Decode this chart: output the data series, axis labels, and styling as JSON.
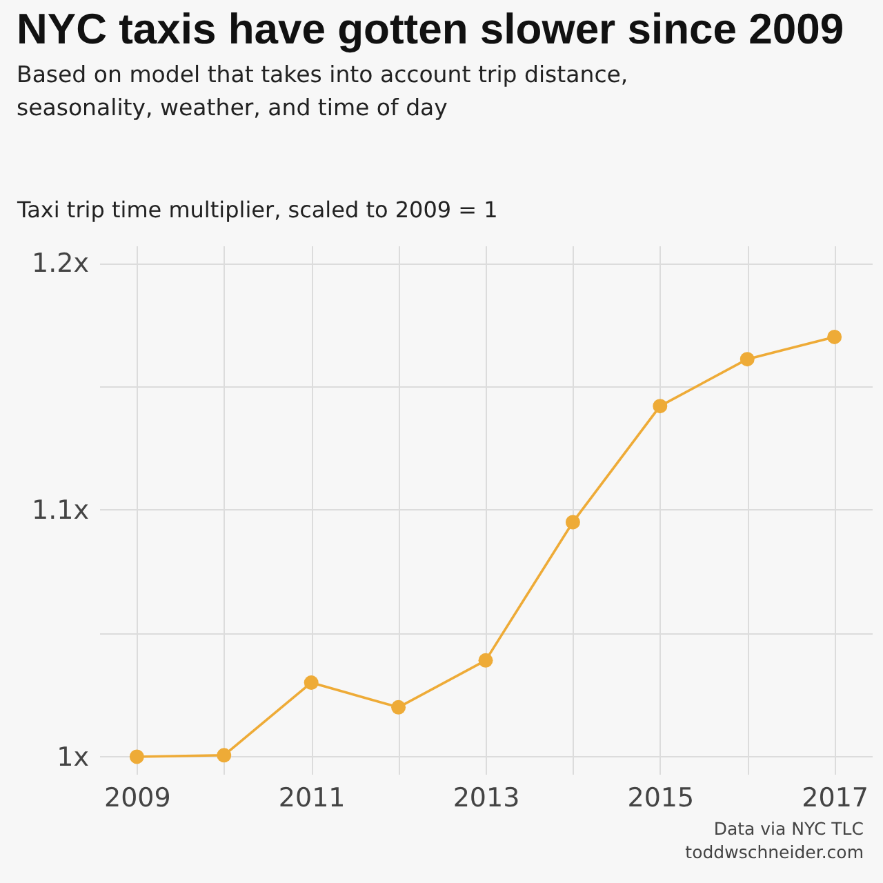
{
  "chart_data": {
    "type": "line",
    "title": "NYC taxis have gotten slower since 2009",
    "subtitle": "Based on model that takes into account trip distance, seasonality, weather, and time of day",
    "ylabel": "Taxi trip time multiplier, scaled to 2009 = 1",
    "x": [
      2009,
      2010,
      2011,
      2012,
      2013,
      2014,
      2015,
      2016,
      2017
    ],
    "series": [
      {
        "color": "#eeab37",
        "values": [
          1.0,
          1.0006,
          1.03,
          1.02,
          1.039,
          1.095,
          1.142,
          1.161,
          1.17
        ]
      }
    ],
    "xlim": [
      2008.57,
      2017.43
    ],
    "ylim": [
      0.993,
      1.207
    ],
    "xticks": [
      2009,
      {
        "value": 2010,
        "label": null
      },
      2011,
      {
        "value": 2012,
        "label": null
      },
      2013,
      {
        "value": 2014,
        "label": null
      },
      2015,
      {
        "value": 2016,
        "label": null
      },
      2017
    ],
    "yticks": [
      {
        "value": 1,
        "label": "1x"
      },
      {
        "value": 1.05,
        "label": null
      },
      {
        "value": 1.1,
        "label": "1.1x"
      },
      {
        "value": 1.15,
        "label": null
      },
      {
        "value": 1.2,
        "label": "1.2x"
      }
    ],
    "grid": true,
    "marker": "circle",
    "legend": false,
    "annotations": [
      "Data via NYC TLC",
      "toddwschneider.com"
    ]
  }
}
